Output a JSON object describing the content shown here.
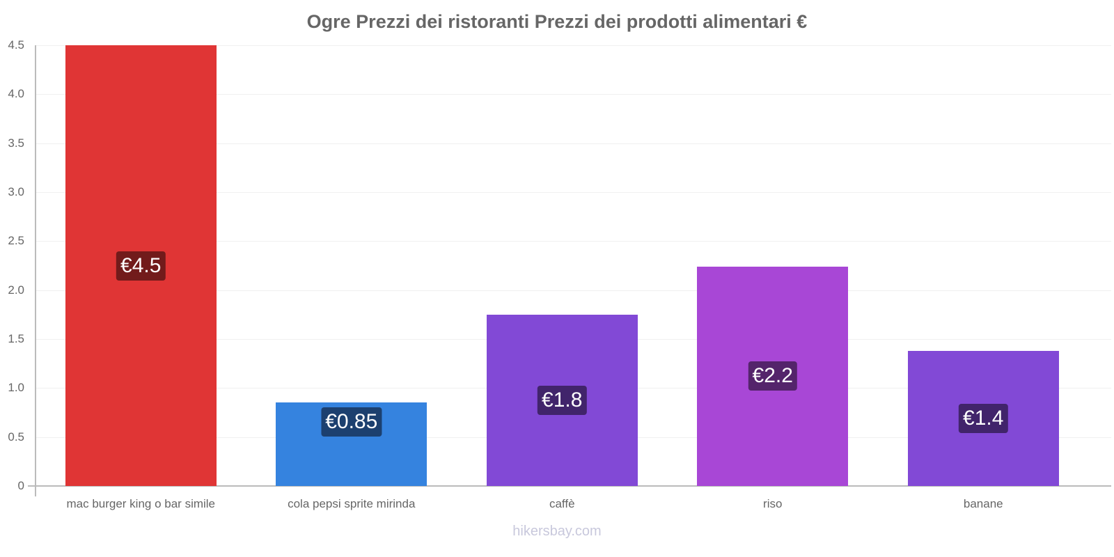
{
  "chart_data": {
    "type": "bar",
    "title": "Ogre Prezzi dei ristoranti Prezzi dei prodotti alimentari €",
    "xlabel": "",
    "ylabel": "",
    "categories": [
      "mac burger king o bar simile",
      "cola pepsi sprite mirinda",
      "caffè",
      "riso",
      "banane"
    ],
    "values": [
      4.5,
      0.85,
      1.75,
      2.24,
      1.38
    ],
    "value_labels": [
      "€4.5",
      "€0.85",
      "€1.8",
      "€2.2",
      "€1.4"
    ],
    "colors": [
      "#e03535",
      "#3583df",
      "#8249d6",
      "#a847d6",
      "#8249d6"
    ],
    "label_bg_colors": [
      "#721b1b",
      "#1c406f",
      "#41246b",
      "#54246b",
      "#41246b"
    ],
    "ylim": [
      0,
      4.5
    ],
    "yticks": [
      "0",
      "0.5",
      "1.0",
      "1.5",
      "2.0",
      "2.5",
      "3.0",
      "3.5",
      "4.0",
      "4.5"
    ],
    "grid": true,
    "legend": null
  },
  "footer": {
    "source": "hikersbay.com"
  }
}
